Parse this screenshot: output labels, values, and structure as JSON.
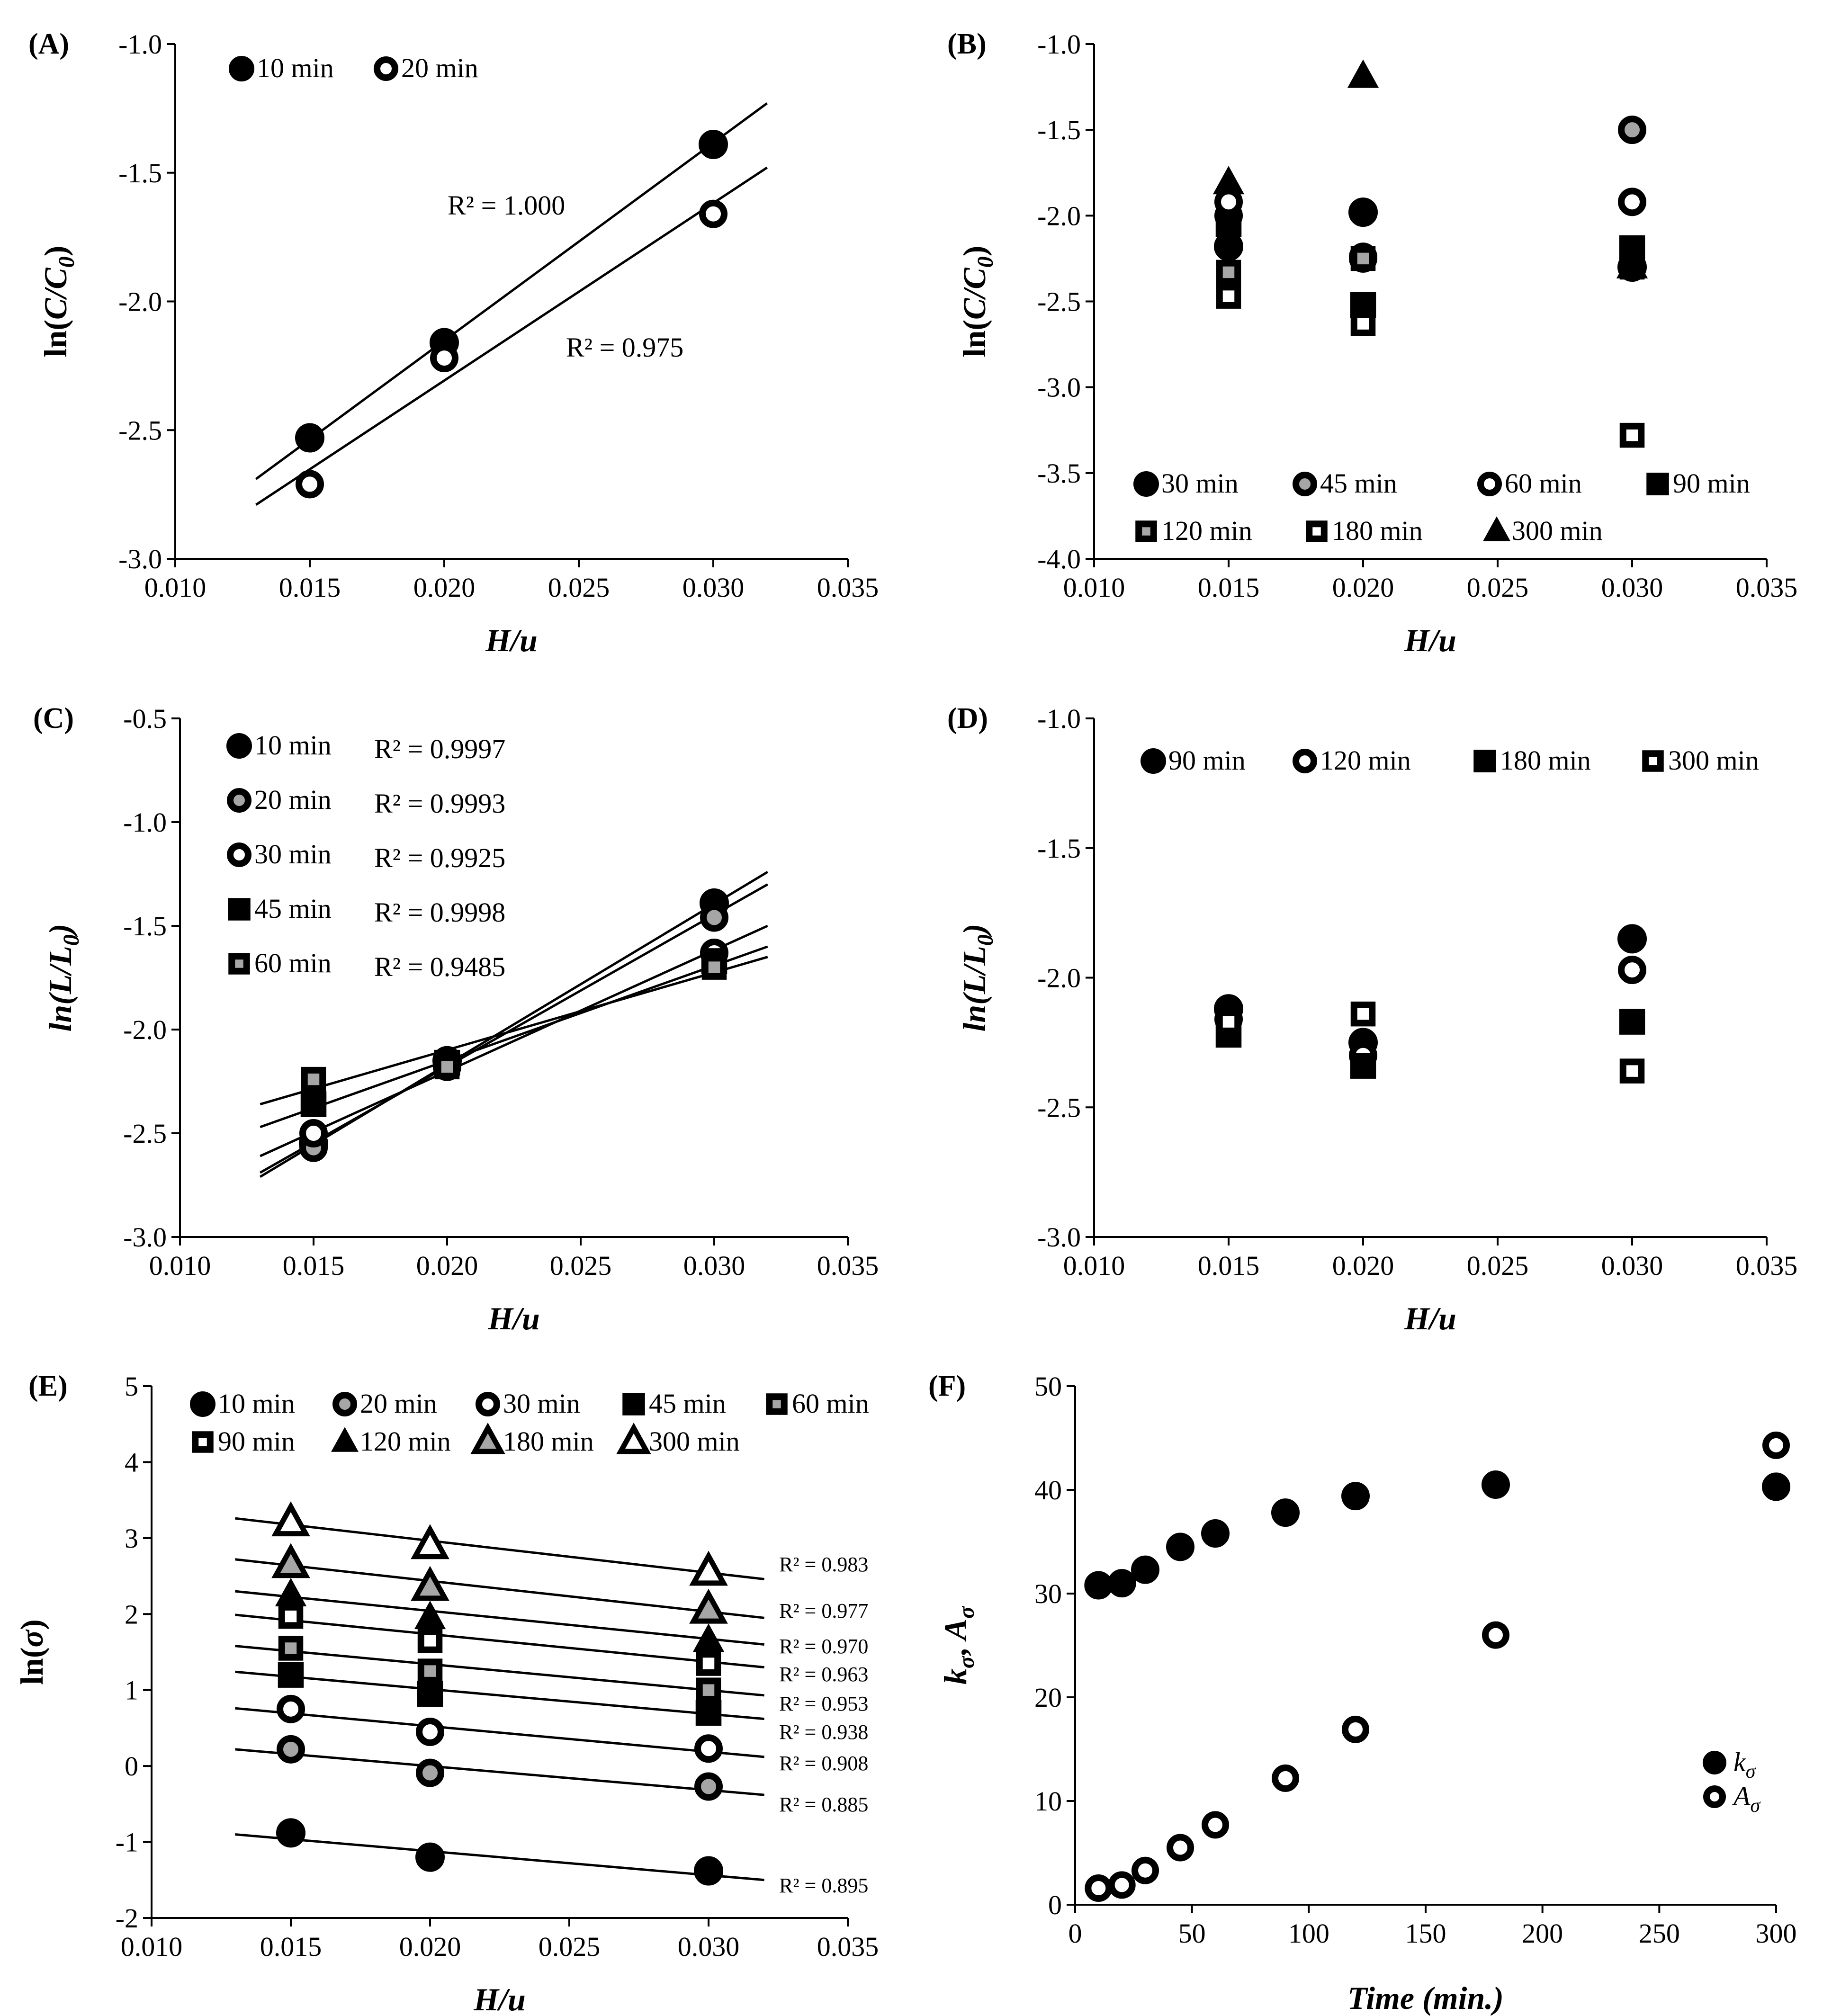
{
  "colors": {
    "black": "#000000",
    "white": "#ffffff",
    "gray": "#a6a6a6"
  },
  "chart_data": [
    {
      "id": "A",
      "label": "(A)",
      "type": "scatter",
      "xlabel": "H/u",
      "ylabel": "ln(C/C0)",
      "xlim": [
        0.01,
        0.035
      ],
      "ylim": [
        -3.0,
        -1.0
      ],
      "xticks": [
        "0.010",
        "0.015",
        "0.020",
        "0.025",
        "0.030",
        "0.035"
      ],
      "yticks": [
        "-1.0",
        "-1.5",
        "-2.0",
        "-2.5",
        "-3.0"
      ],
      "series": [
        {
          "name": "10 min",
          "marker": "circle-filled",
          "x": [
            0.015,
            0.02,
            0.03
          ],
          "y": [
            -2.53,
            -2.16,
            -1.39
          ],
          "fit": {
            "x": [
              0.013,
              0.032
            ],
            "y": [
              -2.69,
              -1.23
            ]
          },
          "r2": "R² = 1.000"
        },
        {
          "name": "20 min",
          "marker": "circle-open",
          "x": [
            0.015,
            0.02,
            0.03
          ],
          "y": [
            -2.71,
            -2.22,
            -1.66
          ],
          "fit": {
            "x": [
              0.013,
              0.032
            ],
            "y": [
              -2.79,
              -1.48
            ]
          },
          "r2": "R² = 0.975"
        }
      ]
    },
    {
      "id": "B",
      "label": "(B)",
      "type": "scatter",
      "xlabel": "H/u",
      "ylabel": "ln(C/C0)",
      "xlim": [
        0.01,
        0.035
      ],
      "ylim": [
        -4.0,
        -1.0
      ],
      "xticks": [
        "0.010",
        "0.015",
        "0.020",
        "0.025",
        "0.030",
        "0.035"
      ],
      "yticks": [
        "-1.0",
        "-1.5",
        "-2.0",
        "-2.5",
        "-3.0",
        "-3.5",
        "-4.0"
      ],
      "series": [
        {
          "name": "30 min",
          "marker": "circle-filled",
          "x": [
            0.015,
            0.02,
            0.03
          ],
          "y": [
            -2.18,
            -1.98,
            -2.3
          ]
        },
        {
          "name": "45 min",
          "marker": "circle-gray",
          "x": [
            0.015,
            0.02,
            0.03
          ],
          "y": [
            -2.0,
            -2.24,
            -1.5
          ]
        },
        {
          "name": "60 min",
          "marker": "circle-open",
          "x": [
            0.015,
            0.02,
            0.03
          ],
          "y": [
            -1.92,
            -2.25,
            -1.92
          ]
        },
        {
          "name": "90 min",
          "marker": "square-filled",
          "x": [
            0.015,
            0.02,
            0.03
          ],
          "y": [
            -2.05,
            -2.52,
            -2.19
          ]
        },
        {
          "name": "120 min",
          "marker": "square-gray",
          "x": [
            0.015,
            0.02,
            0.03
          ],
          "y": [
            -2.33,
            -2.25,
            -2.3
          ]
        },
        {
          "name": "180 min",
          "marker": "square-open",
          "x": [
            0.015,
            0.02,
            0.03
          ],
          "y": [
            -2.47,
            -2.63,
            -3.28
          ]
        },
        {
          "name": "300 min",
          "marker": "triangle-filled",
          "x": [
            0.015,
            0.02,
            0.03
          ],
          "y": [
            -1.81,
            -1.19,
            -2.3
          ]
        }
      ]
    },
    {
      "id": "C",
      "label": "(C)",
      "type": "scatter",
      "xlabel": "H/u",
      "ylabel": "ln(L/L0)",
      "xlim": [
        0.01,
        0.035
      ],
      "ylim": [
        -3.0,
        -0.5
      ],
      "xticks": [
        "0.010",
        "0.015",
        "0.020",
        "0.025",
        "0.030",
        "0.035"
      ],
      "yticks": [
        "-0.5",
        "-1.0",
        "-1.5",
        "-2.0",
        "-2.5",
        "-3.0"
      ],
      "series": [
        {
          "name": "10 min",
          "marker": "circle-filled",
          "x": [
            0.015,
            0.02,
            0.03
          ],
          "y": [
            -2.55,
            -2.15,
            -1.39
          ],
          "fit": {
            "x": [
              0.013,
              0.032
            ],
            "y": [
              -2.71,
              -1.24
            ]
          },
          "r2": "R² = 0.9997"
        },
        {
          "name": "20 min",
          "marker": "circle-gray",
          "x": [
            0.015,
            0.02,
            0.03
          ],
          "y": [
            -2.57,
            -2.16,
            -1.46
          ],
          "fit": {
            "x": [
              0.013,
              0.032
            ],
            "y": [
              -2.69,
              -1.3
            ]
          },
          "r2": "R² = 0.9993"
        },
        {
          "name": "30 min",
          "marker": "circle-open",
          "x": [
            0.015,
            0.02,
            0.03
          ],
          "y": [
            -2.5,
            -2.18,
            -1.63
          ],
          "fit": {
            "x": [
              0.013,
              0.032
            ],
            "y": [
              -2.61,
              -1.5
            ]
          },
          "r2": "R² = 0.9925"
        },
        {
          "name": "45 min",
          "marker": "square-filled",
          "x": [
            0.015,
            0.02,
            0.03
          ],
          "y": [
            -2.36,
            -2.16,
            -1.67
          ],
          "fit": {
            "x": [
              0.013,
              0.032
            ],
            "y": [
              -2.47,
              -1.6
            ]
          },
          "r2": "R² = 0.9998"
        },
        {
          "name": "60 min",
          "marker": "square-gray",
          "x": [
            0.015,
            0.02,
            0.03
          ],
          "y": [
            -2.24,
            -2.18,
            -1.7
          ],
          "fit": {
            "x": [
              0.013,
              0.032
            ],
            "y": [
              -2.36,
              -1.65
            ]
          },
          "r2": "R² = 0.9485"
        }
      ]
    },
    {
      "id": "D",
      "label": "(D)",
      "type": "scatter",
      "xlabel": "H/u",
      "ylabel": "ln(L/L0)",
      "xlim": [
        0.01,
        0.035
      ],
      "ylim": [
        -3.0,
        -1.0
      ],
      "xticks": [
        "0.010",
        "0.015",
        "0.020",
        "0.025",
        "0.030",
        "0.035"
      ],
      "yticks": [
        "-1.0",
        "-1.5",
        "-2.0",
        "-2.5",
        "-3.0"
      ],
      "series": [
        {
          "name": "90 min",
          "marker": "circle-filled",
          "x": [
            0.015,
            0.02,
            0.03
          ],
          "y": [
            -2.12,
            -2.25,
            -1.85
          ]
        },
        {
          "name": "120 min",
          "marker": "circle-open",
          "x": [
            0.015,
            0.02,
            0.03
          ],
          "y": [
            -2.16,
            -2.3,
            -1.97
          ]
        },
        {
          "name": "180 min",
          "marker": "square-filled",
          "x": [
            0.015,
            0.02,
            0.03
          ],
          "y": [
            -2.22,
            -2.34,
            -2.17
          ]
        },
        {
          "name": "300 min",
          "marker": "square-open",
          "x": [
            0.015,
            0.02,
            0.03
          ],
          "y": [
            -2.17,
            -2.14,
            -2.36
          ]
        }
      ]
    },
    {
      "id": "E",
      "label": "(E)",
      "type": "scatter",
      "xlabel": "H/u",
      "ylabel": "ln(σ)",
      "xlim": [
        0.01,
        0.035
      ],
      "ylim": [
        -2,
        5
      ],
      "xticks": [
        "0.010",
        "0.015",
        "0.020",
        "0.025",
        "0.030",
        "0.035"
      ],
      "yticks": [
        "5",
        "4",
        "3",
        "2",
        "1",
        "0",
        "-1",
        "-2"
      ],
      "series": [
        {
          "name": "10 min",
          "marker": "circle-filled",
          "x": [
            0.015,
            0.02,
            0.03
          ],
          "y": [
            -0.88,
            -1.2,
            -1.38
          ],
          "fit": {
            "x": [
              0.013,
              0.032
            ],
            "y": [
              -0.9,
              -1.5
            ]
          },
          "r2": "R² = 0.895"
        },
        {
          "name": "20 min",
          "marker": "circle-gray",
          "x": [
            0.015,
            0.02,
            0.03
          ],
          "y": [
            0.22,
            -0.09,
            -0.27
          ],
          "fit": {
            "x": [
              0.013,
              0.032
            ],
            "y": [
              0.22,
              -0.38
            ]
          },
          "r2": "R² = 0.885"
        },
        {
          "name": "30 min",
          "marker": "circle-open",
          "x": [
            0.015,
            0.02,
            0.03
          ],
          "y": [
            0.75,
            0.45,
            0.23
          ],
          "fit": {
            "x": [
              0.013,
              0.032
            ],
            "y": [
              0.76,
              0.12
            ]
          },
          "r2": "R² = 0.908"
        },
        {
          "name": "45 min",
          "marker": "square-filled",
          "x": [
            0.015,
            0.02,
            0.03
          ],
          "y": [
            1.2,
            0.95,
            0.7
          ],
          "fit": {
            "x": [
              0.013,
              0.032
            ],
            "y": [
              1.24,
              0.62
            ]
          },
          "r2": "R² = 0.938"
        },
        {
          "name": "60 min",
          "marker": "square-gray",
          "x": [
            0.015,
            0.02,
            0.03
          ],
          "y": [
            1.55,
            1.25,
            1.0
          ],
          "fit": {
            "x": [
              0.013,
              0.032
            ],
            "y": [
              1.58,
              0.93
            ]
          },
          "r2": "R² = 0.953"
        },
        {
          "name": "90 min",
          "marker": "square-open",
          "x": [
            0.015,
            0.02,
            0.03
          ],
          "y": [
            1.97,
            1.65,
            1.35
          ],
          "fit": {
            "x": [
              0.013,
              0.032
            ],
            "y": [
              1.99,
              1.3
            ]
          },
          "r2": "R² = 0.963"
        },
        {
          "name": "120 min",
          "marker": "triangle-filled",
          "x": [
            0.015,
            0.02,
            0.03
          ],
          "y": [
            2.25,
            1.95,
            1.65
          ],
          "fit": {
            "x": [
              0.013,
              0.032
            ],
            "y": [
              2.3,
              1.6
            ]
          },
          "r2": "R² = 0.970"
        },
        {
          "name": "180 min",
          "marker": "triangle-gray",
          "x": [
            0.015,
            0.02,
            0.03
          ],
          "y": [
            2.65,
            2.35,
            2.05
          ],
          "fit": {
            "x": [
              0.013,
              0.032
            ],
            "y": [
              2.72,
              1.95
            ]
          },
          "r2": "R² = 0.977"
        },
        {
          "name": "300 min",
          "marker": "triangle-open",
          "x": [
            0.015,
            0.02,
            0.03
          ],
          "y": [
            3.2,
            2.9,
            2.55
          ],
          "fit": {
            "x": [
              0.013,
              0.032
            ],
            "y": [
              3.26,
              2.46
            ]
          },
          "r2": "R² = 0.983"
        }
      ]
    },
    {
      "id": "F",
      "label": "(F)",
      "type": "scatter",
      "xlabel": "Time (min.)",
      "ylabel": "kσ, Aσ",
      "xlim": [
        0,
        300
      ],
      "ylim": [
        0,
        50
      ],
      "xticks": [
        "0",
        "50",
        "100",
        "150",
        "200",
        "250",
        "300"
      ],
      "yticks": [
        "50",
        "40",
        "30",
        "20",
        "10",
        "0"
      ],
      "series": [
        {
          "name": "kσ",
          "marker": "circle-filled",
          "x": [
            10,
            20,
            30,
            45,
            60,
            90,
            120,
            180,
            300
          ],
          "y": [
            30.8,
            31.0,
            32.3,
            34.5,
            35.8,
            37.8,
            39.4,
            40.5,
            40.3
          ]
        },
        {
          "name": "Aσ",
          "marker": "circle-open",
          "x": [
            10,
            20,
            30,
            45,
            60,
            90,
            120,
            180,
            300
          ],
          "y": [
            1.6,
            1.9,
            3.3,
            5.5,
            7.7,
            12.2,
            16.9,
            26.0,
            44.3
          ]
        }
      ]
    }
  ]
}
